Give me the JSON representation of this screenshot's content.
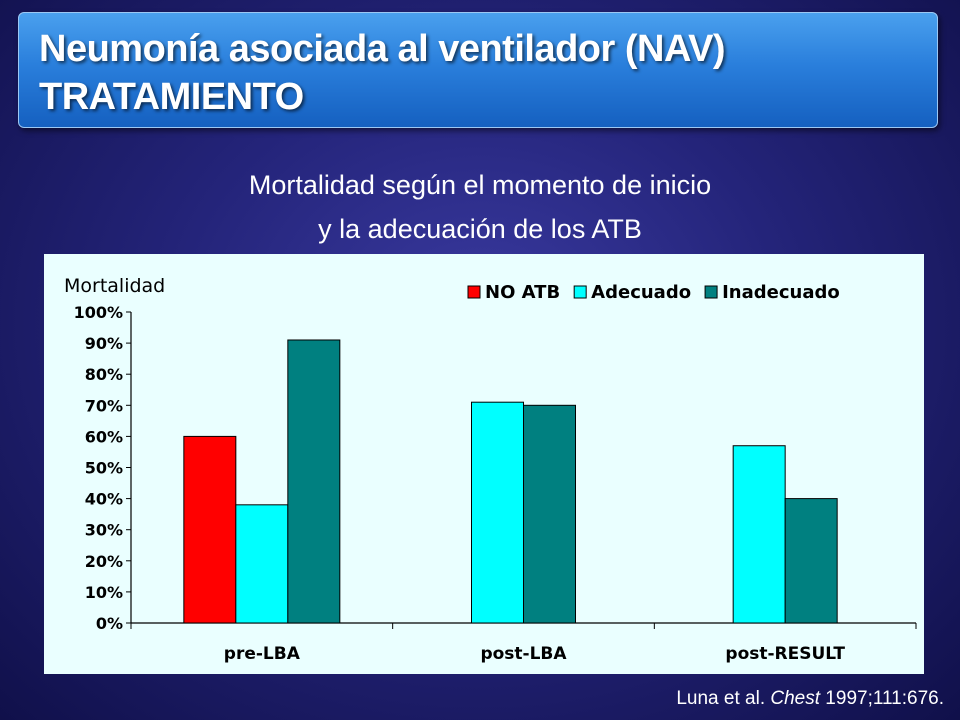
{
  "title": {
    "line1": "Neumonía asociada al ventilador (NAV)",
    "line2": "TRATAMIENTO"
  },
  "subtitle": {
    "line1": "Mortalidad según el momento de inicio",
    "line2": "y la adecuación de los ATB"
  },
  "citation": {
    "authors": "Luna et al. ",
    "journal": "Chest",
    "ref": " 1997;111:676."
  },
  "colors": {
    "no_atb": "#ff0000",
    "adecuado": "#00ffff",
    "inadecuado": "#008080",
    "panel_bg": "#eaffff"
  },
  "chart_data": {
    "type": "bar",
    "title": "",
    "xlabel": "",
    "ylabel": "Mortalidad",
    "ylim": [
      0,
      100
    ],
    "yticks": [
      "0%",
      "10%",
      "20%",
      "30%",
      "40%",
      "50%",
      "60%",
      "70%",
      "80%",
      "90%",
      "100%"
    ],
    "categories": [
      "pre-LBA",
      "post-LBA",
      "post-RESULT"
    ],
    "legend_position": "top-right",
    "series": [
      {
        "name": "NO ATB",
        "values": [
          60,
          null,
          null
        ]
      },
      {
        "name": "Adecuado",
        "values": [
          38,
          71,
          57
        ]
      },
      {
        "name": "Inadecuado",
        "values": [
          91,
          70,
          40
        ]
      }
    ]
  }
}
